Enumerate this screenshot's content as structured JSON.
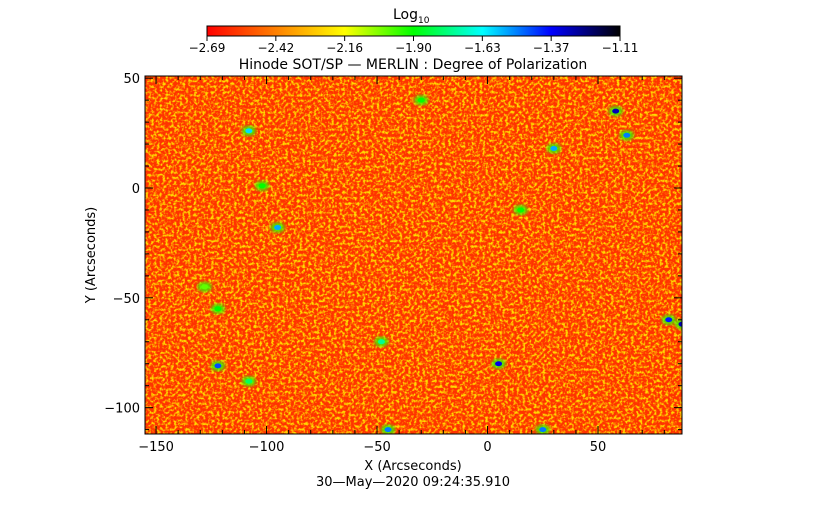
{
  "chart_data": {
    "type": "heatmap",
    "title": "Hinode SOT/SP — MERLIN : Degree of Polarization",
    "xlabel": "X (Arcseconds)",
    "ylabel": "Y (Arcseconds)",
    "xlim": [
      -155,
      88
    ],
    "ylim": [
      -112,
      51
    ],
    "x_ticks": [
      -150,
      -100,
      -50,
      0,
      50
    ],
    "x_tick_labels": [
      "−150",
      "−100",
      "−50",
      "0",
      "50"
    ],
    "y_ticks": [
      50,
      0,
      -50,
      -100
    ],
    "y_tick_labels": [
      "50",
      "0",
      "−50",
      "−100"
    ],
    "timestamp": "30—May—2020 09:24:35.910",
    "colorbar": {
      "label_main": "Log",
      "label_sub": "10",
      "min": -2.69,
      "max": -1.11,
      "tick_labels": [
        "−2.69",
        "−2.42",
        "−2.16",
        "−1.90",
        "−1.63",
        "−1.37",
        "−1.11"
      ],
      "colors": [
        "#ff0000",
        "#ff8000",
        "#ffff00",
        "#00ff00",
        "#00ffff",
        "#0000ff",
        "#000000"
      ]
    },
    "background_level": -2.69,
    "features": [
      {
        "x": -108,
        "y": 26,
        "value": -1.6
      },
      {
        "x": -102,
        "y": 1,
        "value": -1.9
      },
      {
        "x": -95,
        "y": -18,
        "value": -1.55
      },
      {
        "x": -128,
        "y": -45,
        "value": -2.0
      },
      {
        "x": -122,
        "y": -55,
        "value": -1.9
      },
      {
        "x": -122,
        "y": -81,
        "value": -1.45
      },
      {
        "x": -108,
        "y": -88,
        "value": -1.8
      },
      {
        "x": -48,
        "y": -70,
        "value": -1.75
      },
      {
        "x": -45,
        "y": -110,
        "value": -1.5
      },
      {
        "x": 5,
        "y": -80,
        "value": -1.35
      },
      {
        "x": 30,
        "y": 18,
        "value": -1.55
      },
      {
        "x": 58,
        "y": 35,
        "value": -1.3
      },
      {
        "x": 63,
        "y": 24,
        "value": -1.5
      },
      {
        "x": 82,
        "y": -60,
        "value": -1.4
      },
      {
        "x": 88,
        "y": -62,
        "value": -1.3
      },
      {
        "x": 25,
        "y": -110,
        "value": -1.5
      },
      {
        "x": -30,
        "y": 40,
        "value": -1.9
      },
      {
        "x": 15,
        "y": -10,
        "value": -1.9
      }
    ]
  }
}
